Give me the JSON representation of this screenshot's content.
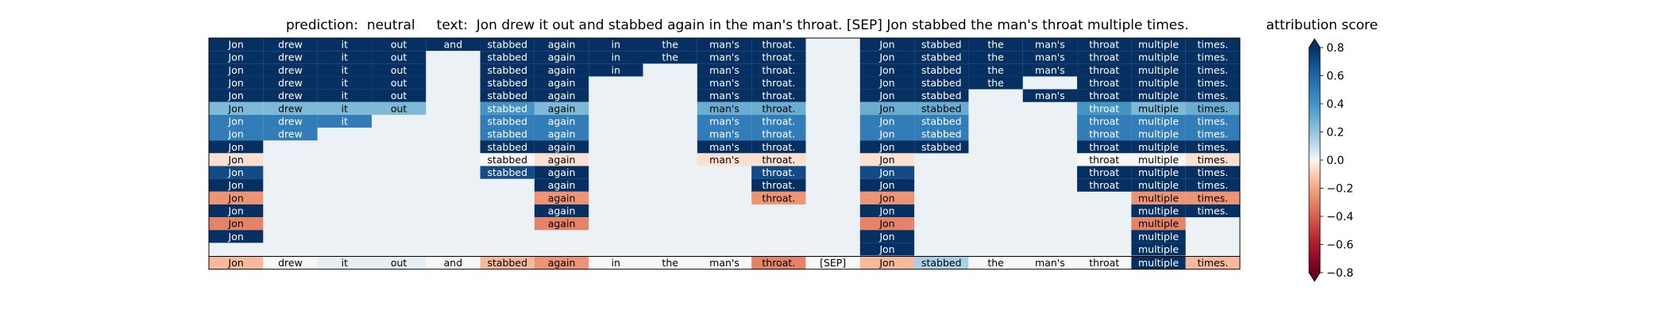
{
  "title": "prediction:  neutral     text:  Jon drew it out and stabbed again in the man's throat. [SEP] Jon stabbed the man's throat multiple times.",
  "colorbar_title": "attribution score",
  "chart_data": {
    "type": "heatmap",
    "prediction": "neutral",
    "tokens": [
      "Jon",
      "drew",
      "it",
      "out",
      "and",
      "stabbed",
      "again",
      "in",
      "the",
      "man's",
      "throat.",
      "[SEP]",
      "Jon",
      "stabbed",
      "the",
      "man's",
      "throat",
      "multiple",
      "times."
    ],
    "colorbar": {
      "label": "attribution score",
      "range": [
        -0.8,
        0.8
      ],
      "ticks": [
        "0.8",
        "0.6",
        "0.4",
        "0.2",
        "0.0",
        "−0.2",
        "−0.4",
        "−0.6",
        "−0.8"
      ],
      "tick_values": [
        0.8,
        0.6,
        0.4,
        0.2,
        0.0,
        -0.2,
        -0.4,
        -0.6,
        -0.8
      ],
      "colormap": "RdBu"
    },
    "background_value": 0.02,
    "rows": [
      [
        0.8,
        0.8,
        0.8,
        0.8,
        0.8,
        0.8,
        0.8,
        0.8,
        0.8,
        0.8,
        0.8,
        null,
        0.8,
        0.8,
        0.8,
        0.8,
        0.8,
        0.8,
        0.8
      ],
      [
        0.8,
        0.8,
        0.8,
        0.8,
        null,
        0.8,
        0.8,
        0.8,
        0.8,
        0.8,
        0.8,
        null,
        0.8,
        0.8,
        0.8,
        0.8,
        0.8,
        0.8,
        0.8
      ],
      [
        0.8,
        0.8,
        0.8,
        0.8,
        null,
        0.8,
        0.8,
        0.8,
        null,
        0.8,
        0.8,
        null,
        0.8,
        0.8,
        0.8,
        0.8,
        0.8,
        0.8,
        0.8
      ],
      [
        0.8,
        0.8,
        0.8,
        0.8,
        null,
        0.8,
        0.8,
        null,
        null,
        0.8,
        0.8,
        null,
        0.8,
        0.8,
        0.8,
        null,
        0.8,
        0.8,
        0.8
      ],
      [
        0.8,
        0.8,
        0.8,
        0.8,
        null,
        0.8,
        0.8,
        null,
        null,
        0.8,
        0.8,
        null,
        0.8,
        0.8,
        null,
        0.8,
        0.8,
        0.8,
        0.8
      ],
      [
        0.25,
        0.25,
        0.25,
        0.25,
        null,
        0.4,
        0.25,
        null,
        null,
        0.3,
        0.3,
        null,
        0.3,
        0.3,
        null,
        null,
        0.4,
        0.25,
        0.3
      ],
      [
        0.5,
        0.5,
        0.5,
        null,
        null,
        0.5,
        0.5,
        null,
        null,
        0.5,
        0.5,
        null,
        0.5,
        0.5,
        null,
        null,
        0.5,
        0.5,
        0.5
      ],
      [
        0.5,
        0.5,
        null,
        null,
        null,
        0.5,
        0.5,
        null,
        null,
        0.5,
        0.5,
        null,
        0.5,
        0.5,
        null,
        null,
        0.5,
        0.5,
        0.5
      ],
      [
        0.8,
        null,
        null,
        null,
        null,
        0.8,
        0.8,
        null,
        null,
        0.8,
        0.8,
        null,
        0.8,
        0.8,
        null,
        null,
        0.8,
        0.8,
        0.8
      ],
      [
        -0.05,
        null,
        null,
        null,
        null,
        0.0,
        -0.05,
        null,
        null,
        -0.05,
        -0.05,
        null,
        -0.05,
        null,
        null,
        null,
        0.0,
        0.0,
        -0.05
      ],
      [
        0.7,
        null,
        null,
        null,
        null,
        0.7,
        0.8,
        null,
        null,
        null,
        0.7,
        null,
        0.7,
        null,
        null,
        null,
        0.8,
        0.8,
        0.8
      ],
      [
        0.8,
        null,
        null,
        null,
        null,
        null,
        0.8,
        null,
        null,
        null,
        0.8,
        null,
        0.8,
        null,
        null,
        null,
        0.8,
        0.8,
        0.8
      ],
      [
        -0.25,
        null,
        null,
        null,
        null,
        null,
        -0.25,
        null,
        null,
        null,
        -0.25,
        null,
        -0.25,
        null,
        null,
        null,
        null,
        -0.25,
        -0.25
      ],
      [
        0.8,
        null,
        null,
        null,
        null,
        null,
        0.8,
        null,
        null,
        null,
        null,
        null,
        0.8,
        null,
        null,
        null,
        null,
        0.8,
        0.8
      ],
      [
        -0.3,
        null,
        null,
        null,
        null,
        null,
        -0.3,
        null,
        null,
        null,
        null,
        null,
        -0.3,
        null,
        null,
        null,
        null,
        -0.3,
        null
      ],
      [
        0.8,
        null,
        null,
        null,
        null,
        null,
        null,
        null,
        null,
        null,
        null,
        null,
        0.8,
        null,
        null,
        null,
        null,
        0.8,
        null
      ],
      [
        null,
        null,
        null,
        null,
        null,
        null,
        null,
        null,
        null,
        null,
        null,
        null,
        0.8,
        null,
        null,
        null,
        null,
        0.8,
        null
      ]
    ],
    "summary_row": [
      -0.15,
      0.0,
      0.03,
      0.03,
      0.0,
      -0.15,
      -0.25,
      0.0,
      0.0,
      0.0,
      -0.3,
      0.0,
      -0.15,
      0.15,
      0.0,
      0.0,
      0.0,
      0.8,
      -0.15
    ]
  }
}
